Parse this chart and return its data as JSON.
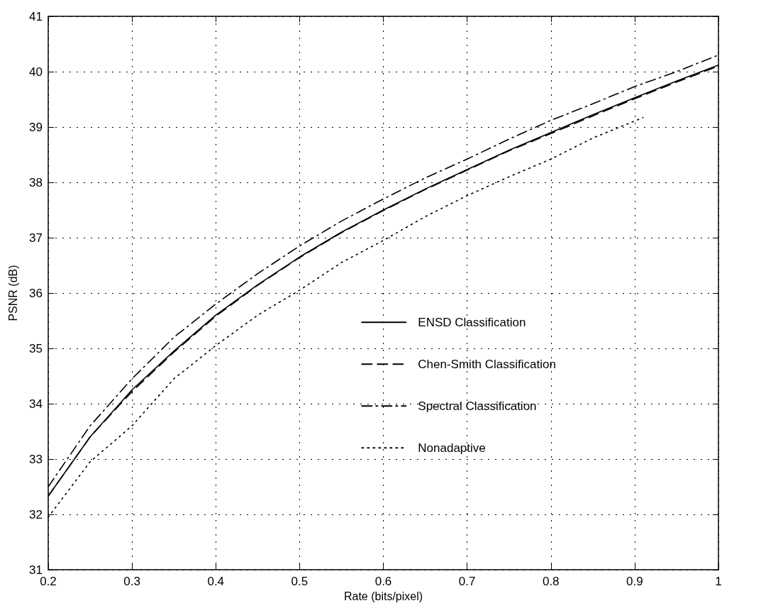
{
  "chart_data": {
    "type": "line",
    "xlabel": "Rate (bits/pixel)",
    "ylabel": "PSNR (dB)",
    "xlim": [
      0.2,
      1
    ],
    "ylim": [
      31,
      41
    ],
    "xticks": [
      0.2,
      0.3,
      0.4,
      0.5,
      0.6,
      0.7,
      0.8,
      0.9,
      1
    ],
    "yticks": [
      31,
      32,
      33,
      34,
      35,
      36,
      37,
      38,
      39,
      40,
      41
    ],
    "grid": true,
    "legend": "right",
    "marker": "none",
    "x": [
      0.2,
      0.25,
      0.3,
      0.35,
      0.4,
      0.45,
      0.5,
      0.55,
      0.6,
      0.65,
      0.7,
      0.75,
      0.8,
      0.85,
      0.9,
      0.95,
      1.0
    ],
    "series": [
      {
        "name": "ENSD Classification",
        "color": "#000000",
        "line_style": "solid",
        "values": [
          32.33,
          33.4,
          34.25,
          34.95,
          35.6,
          36.15,
          36.65,
          37.1,
          37.5,
          37.88,
          38.23,
          38.58,
          38.9,
          39.22,
          39.53,
          39.83,
          40.12
        ]
      },
      {
        "name": "Chen-Smith Classification",
        "color": "#000000",
        "line_style": "dashed",
        "values": [
          32.33,
          33.4,
          34.22,
          34.93,
          35.58,
          36.14,
          36.64,
          37.09,
          37.49,
          37.87,
          38.22,
          38.57,
          38.88,
          39.2,
          39.51,
          39.81,
          40.1
        ]
      },
      {
        "name": "Spectral Classification",
        "color": "#000000",
        "line_style": "dashdot",
        "values": [
          32.5,
          33.6,
          34.45,
          35.2,
          35.8,
          36.35,
          36.85,
          37.3,
          37.7,
          38.08,
          38.42,
          38.78,
          39.12,
          39.42,
          39.73,
          40.0,
          40.3
        ]
      },
      {
        "name": "Nonadaptive",
        "color": "#000000",
        "line_style": "dotted",
        "x": [
          0.2,
          0.25,
          0.3,
          0.35,
          0.4,
          0.45,
          0.5,
          0.55,
          0.6,
          0.65,
          0.7,
          0.75,
          0.8,
          0.85,
          0.91
        ],
        "values": [
          31.95,
          32.95,
          33.6,
          34.45,
          35.05,
          35.6,
          36.05,
          36.55,
          36.95,
          37.38,
          37.76,
          38.1,
          38.42,
          38.8,
          39.17
        ]
      }
    ]
  }
}
